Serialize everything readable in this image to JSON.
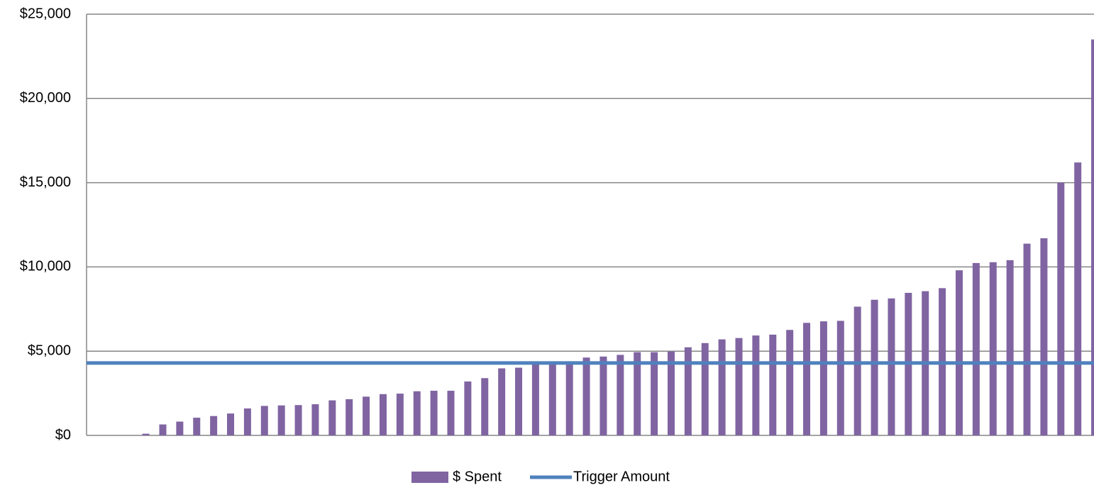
{
  "chart_data": {
    "type": "bar",
    "categories": [
      null,
      null,
      null,
      null,
      null,
      null,
      null,
      null,
      null,
      null,
      null,
      null,
      null,
      null,
      null,
      null,
      null,
      null,
      null,
      null,
      null,
      null,
      null,
      null,
      null,
      null,
      null,
      null,
      null,
      null,
      null,
      null,
      null,
      null,
      null,
      null,
      null,
      null,
      null,
      null,
      null,
      null,
      null,
      null,
      null,
      null,
      null,
      null,
      null,
      null,
      null,
      null,
      null,
      null,
      null,
      null,
      null,
      null,
      null,
      null
    ],
    "series": [
      {
        "name": "$ Spent",
        "color": "#8064a2",
        "values": [
          0,
          0,
          0,
          100,
          650,
          820,
          1050,
          1150,
          1300,
          1600,
          1750,
          1780,
          1800,
          1850,
          2080,
          2150,
          2300,
          2450,
          2480,
          2620,
          2650,
          2650,
          3200,
          3400,
          3980,
          4020,
          4300,
          4350,
          4400,
          4620,
          4680,
          4780,
          4940,
          4940,
          4980,
          5230,
          5480,
          5700,
          5780,
          5930,
          5980,
          6260,
          6680,
          6770,
          6800,
          7640,
          8050,
          8130,
          8460,
          8560,
          8740,
          9800,
          10230,
          10280,
          10400,
          11380,
          11700,
          15000,
          16200,
          23500
        ]
      }
    ],
    "reference_line": {
      "name": "Trigger Amount",
      "color": "#4f81bd",
      "value": 4300
    },
    "ylim": [
      0,
      25000
    ],
    "yticks": [
      {
        "value": 0,
        "label": "$0"
      },
      {
        "value": 5000,
        "label": "$5,000"
      },
      {
        "value": 10000,
        "label": "$10,000"
      },
      {
        "value": 15000,
        "label": "$15,000"
      },
      {
        "value": 20000,
        "label": "$20,000"
      },
      {
        "value": 25000,
        "label": "$25,000"
      }
    ],
    "grid": true
  }
}
